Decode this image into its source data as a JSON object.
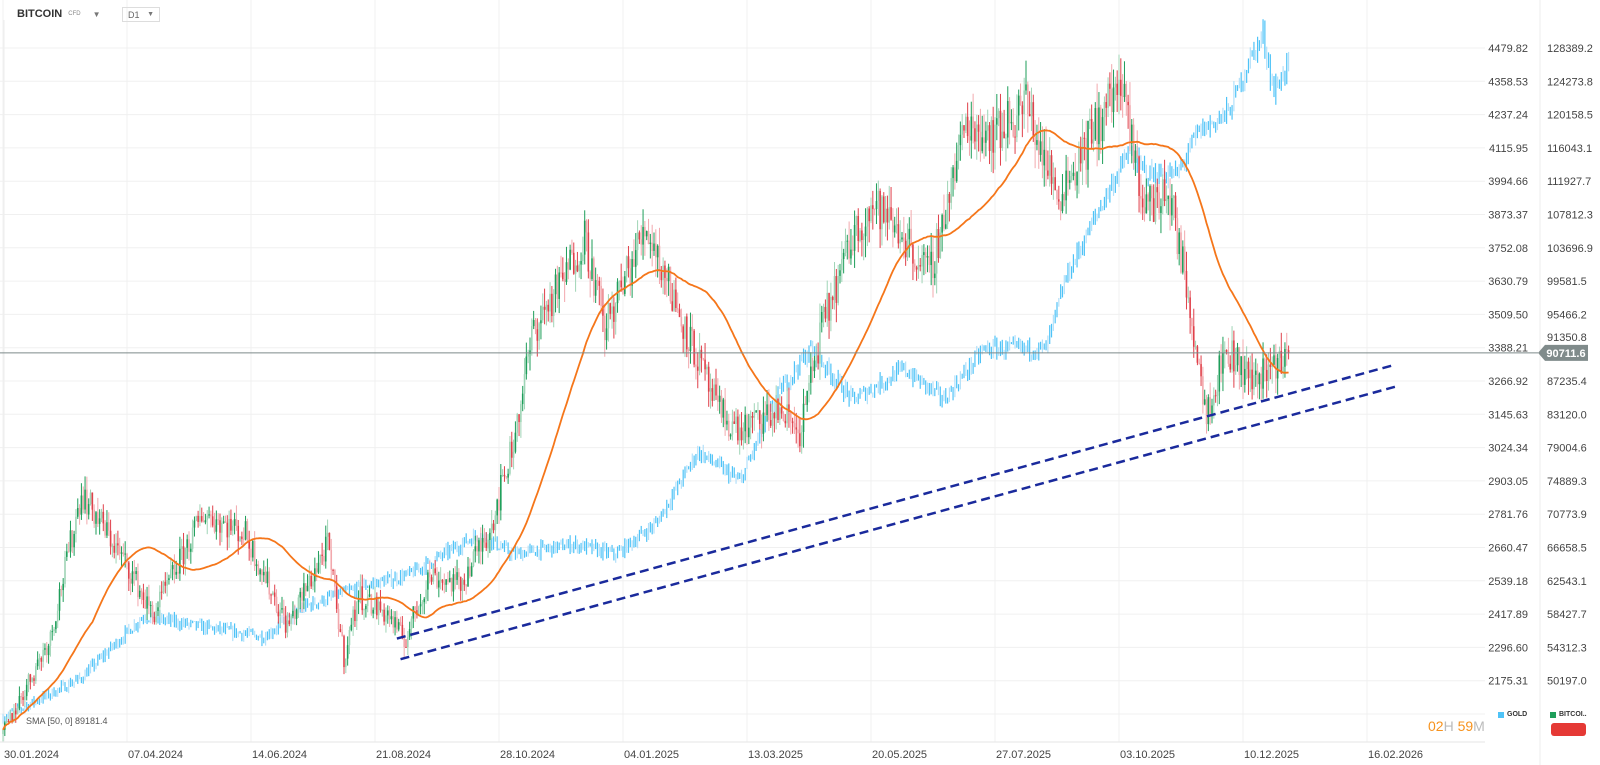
{
  "header": {
    "symbol": "BITCOIN",
    "instrument_type": "CFD",
    "timeframe": "D1"
  },
  "indicator": {
    "label": "SMA [50, 0] 89181.4",
    "color": "#f5761a"
  },
  "countdown": {
    "hours": "02",
    "h_unit": "H",
    "minutes": "59",
    "m_unit": "M"
  },
  "legend": [
    {
      "label": "GOLD",
      "color": "#4fc3f7"
    },
    {
      "label": "BITCOI..",
      "color": "#1e9e5a"
    }
  ],
  "current_price": {
    "label": "90711.6",
    "value": 90711.6
  },
  "chart_data": {
    "type": "candlestick",
    "x_ticks": [
      "30.01.2024",
      "07.04.2024",
      "14.06.2024",
      "21.08.2024",
      "28.10.2024",
      "04.01.2025",
      "13.03.2025",
      "20.05.2025",
      "27.07.2025",
      "03.10.2025",
      "10.12.2025",
      "16.02.2026"
    ],
    "gold_axis_ticks": [
      "4479.82",
      "4358.53",
      "4237.24",
      "4115.95",
      "3994.66",
      "3873.37",
      "3752.08",
      "3630.79",
      "3509.50",
      "3388.21",
      "3266.92",
      "3145.63",
      "3024.34",
      "2903.05",
      "2781.76",
      "2660.47",
      "2539.18",
      "2417.89",
      "2296.60",
      "2175.31"
    ],
    "bitcoin_axis_ticks": [
      "128389.2",
      "124273.8",
      "120158.5",
      "116043.1",
      "111927.7",
      "107812.3",
      "103696.9",
      "99581.5",
      "95466.2",
      "91350.8",
      "87235.4",
      "83120.0",
      "79004.6",
      "74889.3",
      "70773.9",
      "66658.5",
      "62543.1",
      "58427.7",
      "54312.3",
      "50197.0"
    ],
    "grid": true,
    "series": [
      {
        "name": "BITCOI..",
        "axis": "bitcoin",
        "style": "candles",
        "up_color": "#1e9e5a",
        "down_color": "#e0404a",
        "close_points": [
          [
            "2024-01-30",
            43600
          ],
          [
            "2024-02-25",
            55600
          ],
          [
            "2024-03-13",
            73400
          ],
          [
            "2024-03-24",
            69600
          ],
          [
            "2024-04-10",
            63300
          ],
          [
            "2024-04-21",
            58200
          ],
          [
            "2024-05-19",
            70900
          ],
          [
            "2024-06-11",
            68300
          ],
          [
            "2024-07-04",
            56900
          ],
          [
            "2024-07-26",
            67000
          ],
          [
            "2024-08-04",
            53100
          ],
          [
            "2024-08-12",
            60700
          ],
          [
            "2024-08-29",
            58200
          ],
          [
            "2024-09-06",
            55000
          ],
          [
            "2024-09-20",
            63300
          ],
          [
            "2024-10-07",
            62000
          ],
          [
            "2024-10-24",
            69600
          ],
          [
            "2024-11-05",
            79800
          ],
          [
            "2024-11-16",
            93700
          ],
          [
            "2024-11-30",
            98800
          ],
          [
            "2024-12-14",
            105200
          ],
          [
            "2024-12-25",
            93700
          ],
          [
            "2025-01-17",
            106400
          ],
          [
            "2025-02-03",
            96200
          ],
          [
            "2025-02-25",
            83600
          ],
          [
            "2025-03-09",
            81000
          ],
          [
            "2025-03-31",
            83600
          ],
          [
            "2025-04-11",
            81000
          ],
          [
            "2025-04-23",
            93700
          ],
          [
            "2025-05-10",
            105200
          ],
          [
            "2025-05-21",
            109000
          ],
          [
            "2025-06-07",
            105200
          ],
          [
            "2025-06-21",
            100100
          ],
          [
            "2025-07-11",
            119100
          ],
          [
            "2025-07-28",
            117800
          ],
          [
            "2025-08-13",
            121700
          ],
          [
            "2025-08-30",
            110200
          ],
          [
            "2025-09-16",
            116600
          ],
          [
            "2025-10-03",
            124200
          ],
          [
            "2025-10-17",
            109000
          ],
          [
            "2025-10-31",
            110200
          ],
          [
            "2025-11-12",
            95000
          ],
          [
            "2025-11-20",
            83600
          ],
          [
            "2025-12-01",
            91200
          ],
          [
            "2025-12-15",
            87400
          ],
          [
            "2025-12-30",
            89900
          ],
          [
            "2026-01-04",
            90711.6
          ]
        ]
      },
      {
        "name": "GOLD",
        "axis": "gold",
        "style": "candles",
        "color": "#4fc3f7",
        "close_points": [
          [
            "2024-01-30",
            2040
          ],
          [
            "2024-03-13",
            2186
          ],
          [
            "2024-03-24",
            2260
          ],
          [
            "2024-04-16",
            2410
          ],
          [
            "2024-05-19",
            2370
          ],
          [
            "2024-06-21",
            2335
          ],
          [
            "2024-07-14",
            2447
          ],
          [
            "2024-08-16",
            2522
          ],
          [
            "2024-09-08",
            2560
          ],
          [
            "2024-10-17",
            2710
          ],
          [
            "2024-11-05",
            2635
          ],
          [
            "2024-12-08",
            2672
          ],
          [
            "2024-12-31",
            2635
          ],
          [
            "2025-01-22",
            2747
          ],
          [
            "2025-02-14",
            3010
          ],
          [
            "2025-03-09",
            2900
          ],
          [
            "2025-03-31",
            3234
          ],
          [
            "2025-04-17",
            3384
          ],
          [
            "2025-05-10",
            3197
          ],
          [
            "2025-06-07",
            3310
          ],
          [
            "2025-06-29",
            3200
          ],
          [
            "2025-07-21",
            3384
          ],
          [
            "2025-08-24",
            3384
          ],
          [
            "2025-09-04",
            3645
          ],
          [
            "2025-09-26",
            3945
          ],
          [
            "2025-10-08",
            4095
          ],
          [
            "2025-10-19",
            4020
          ],
          [
            "2025-11-04",
            4020
          ],
          [
            "2025-11-15",
            4170
          ],
          [
            "2025-12-02",
            4245
          ],
          [
            "2025-12-13",
            4430
          ],
          [
            "2025-12-21",
            4525
          ],
          [
            "2025-12-27",
            4320
          ],
          [
            "2026-01-04",
            4430
          ]
        ]
      }
    ],
    "sma": {
      "period": 50,
      "of": "bitcoin"
    },
    "trendlines": [
      {
        "style": "dashed",
        "color": "#1a2a9c",
        "from": [
          "2024-09-02",
          55400
        ],
        "to": [
          "2026-03-02",
          89165
        ]
      },
      {
        "style": "dashed",
        "color": "#1a2a9c",
        "from": [
          "2024-09-04",
          52860
        ],
        "to": [
          "2026-03-05",
          86625
        ]
      }
    ]
  }
}
